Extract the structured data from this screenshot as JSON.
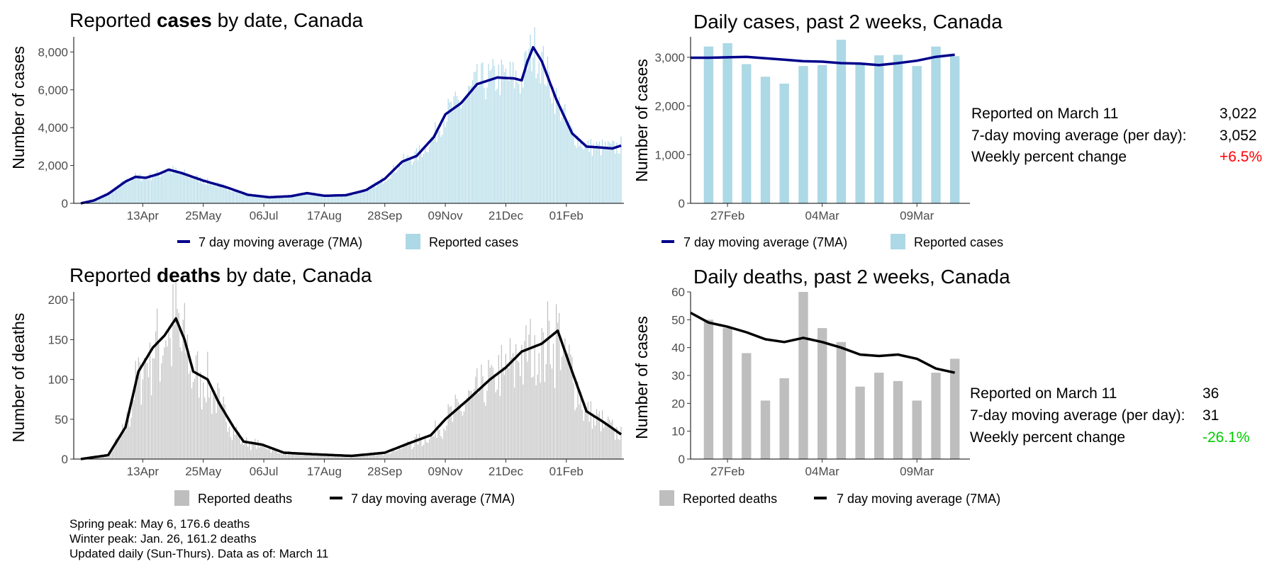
{
  "colors": {
    "cases_bar": "#add8e6",
    "cases_line": "#00008b",
    "deaths_bar": "#bebebe",
    "deaths_line": "#000000",
    "positive_change": "#ff0000",
    "negative_change": "#00cc00"
  },
  "panels": {
    "cases_full": {
      "title_pre": "Reported ",
      "title_bold": "cases",
      "title_post": " by date, Canada",
      "ylabel": "Number of cases",
      "legend_line": "7 day moving average (7MA)",
      "legend_bar": "Reported cases"
    },
    "cases_2wk": {
      "title": "Daily cases, past 2 weeks, Canada",
      "ylabel": "Number of cases",
      "legend_line": "7 day moving average (7MA)",
      "legend_bar": "Reported cases",
      "stats": [
        {
          "label": "Reported on March 11",
          "value": "3,022"
        },
        {
          "label": "7-day moving average (per day):",
          "value": "3,052"
        },
        {
          "label": "Weekly percent change",
          "value": "+6.5%"
        }
      ]
    },
    "deaths_full": {
      "title_pre": "Reported ",
      "title_bold": "deaths",
      "title_post": " by date, Canada",
      "ylabel": "Number of deaths",
      "legend_bar": "Reported deaths",
      "legend_line": "7 day moving average (7MA)"
    },
    "deaths_2wk": {
      "title": "Daily deaths, past 2 weeks, Canada",
      "ylabel": "Number of cases",
      "legend_bar": "Reported deaths",
      "legend_line": "7 day moving average (7MA)",
      "stats": [
        {
          "label": "Reported on March 11",
          "value": "36"
        },
        {
          "label": "7-day moving average (per day):",
          "value": "31"
        },
        {
          "label": "Weekly percent change",
          "value": "-26.1%"
        }
      ]
    }
  },
  "notes": [
    "Spring peak: May 6, 176.6 deaths",
    "Winter peak: Jan. 26, 161.2 deaths",
    "Updated daily (Sun-Thurs). Data as of: March 11"
  ],
  "chart_data": [
    {
      "id": "cases_full",
      "type": "bar",
      "x_range": [
        "2020-03-01",
        "2021-03-11"
      ],
      "ylim": [
        0,
        8800
      ],
      "yticks": [
        0,
        2000,
        4000,
        6000,
        8000
      ],
      "ytick_labels": [
        "0",
        "2,000",
        "4,000",
        "6,000",
        "8,000"
      ],
      "xticks": [
        "2020-04-13",
        "2020-05-25",
        "2020-07-06",
        "2020-08-17",
        "2020-09-28",
        "2020-11-09",
        "2020-12-21",
        "2021-02-01"
      ],
      "xtick_labels": [
        "13Apr",
        "25May",
        "06Jul",
        "17Aug",
        "28Sep",
        "09Nov",
        "21Dec",
        "01Feb"
      ],
      "grid": false,
      "legend": "bottom",
      "ma_anchors": [
        [
          "2020-03-01",
          0
        ],
        [
          "2020-03-10",
          150
        ],
        [
          "2020-03-20",
          500
        ],
        [
          "2020-04-01",
          1150
        ],
        [
          "2020-04-08",
          1400
        ],
        [
          "2020-04-15",
          1350
        ],
        [
          "2020-04-24",
          1550
        ],
        [
          "2020-05-01",
          1780
        ],
        [
          "2020-05-10",
          1600
        ],
        [
          "2020-05-25",
          1200
        ],
        [
          "2020-06-10",
          850
        ],
        [
          "2020-06-25",
          450
        ],
        [
          "2020-07-10",
          320
        ],
        [
          "2020-07-25",
          380
        ],
        [
          "2020-08-05",
          540
        ],
        [
          "2020-08-17",
          400
        ],
        [
          "2020-09-01",
          430
        ],
        [
          "2020-09-15",
          700
        ],
        [
          "2020-09-28",
          1300
        ],
        [
          "2020-10-10",
          2200
        ],
        [
          "2020-10-20",
          2500
        ],
        [
          "2020-11-01",
          3500
        ],
        [
          "2020-11-09",
          4700
        ],
        [
          "2020-11-20",
          5300
        ],
        [
          "2020-12-01",
          6300
        ],
        [
          "2020-12-15",
          6650
        ],
        [
          "2020-12-27",
          6600
        ],
        [
          "2021-01-01",
          6500
        ],
        [
          "2021-01-05",
          7500
        ],
        [
          "2021-01-09",
          8250
        ],
        [
          "2021-01-15",
          7500
        ],
        [
          "2021-01-25",
          5500
        ],
        [
          "2021-02-05",
          3700
        ],
        [
          "2021-02-15",
          3000
        ],
        [
          "2021-02-25",
          2950
        ],
        [
          "2021-03-05",
          2900
        ],
        [
          "2021-03-11",
          3052
        ]
      ]
    },
    {
      "id": "cases_2wk",
      "type": "bar",
      "categories": [
        "2021-02-26",
        "2021-02-27",
        "2021-02-28",
        "2021-03-01",
        "2021-03-02",
        "2021-03-03",
        "2021-03-04",
        "2021-03-05",
        "2021-03-06",
        "2021-03-07",
        "2021-03-08",
        "2021-03-09",
        "2021-03-10",
        "2021-03-11"
      ],
      "values": [
        3220,
        3290,
        2860,
        2600,
        2460,
        2820,
        2840,
        3360,
        2870,
        3040,
        3050,
        2820,
        3220,
        3022
      ],
      "ma": [
        2990,
        3000,
        3010,
        2980,
        2950,
        2920,
        2910,
        2880,
        2870,
        2840,
        2880,
        2930,
        3010,
        3052
      ],
      "ylim": [
        0,
        3420
      ],
      "yticks": [
        0,
        1000,
        2000,
        3000
      ],
      "ytick_labels": [
        "0",
        "1,000",
        "2,000",
        "3,000"
      ],
      "xtick_labels": [
        "27Feb",
        "04Mar",
        "09Mar"
      ],
      "grid": false,
      "legend": "bottom"
    },
    {
      "id": "deaths_full",
      "type": "bar",
      "x_range": [
        "2020-03-01",
        "2021-03-11"
      ],
      "ylim": [
        0,
        210
      ],
      "yticks": [
        0,
        50,
        100,
        150,
        200
      ],
      "ytick_labels": [
        "0",
        "50",
        "100",
        "150",
        "200"
      ],
      "xticks": [
        "2020-04-13",
        "2020-05-25",
        "2020-07-06",
        "2020-08-17",
        "2020-09-28",
        "2020-11-09",
        "2020-12-21",
        "2021-02-01"
      ],
      "xtick_labels": [
        "13Apr",
        "25May",
        "06Jul",
        "17Aug",
        "28Sep",
        "09Nov",
        "21Dec",
        "01Feb"
      ],
      "grid": false,
      "legend": "bottom",
      "ma_anchors": [
        [
          "2020-03-01",
          0
        ],
        [
          "2020-03-20",
          5
        ],
        [
          "2020-04-01",
          40
        ],
        [
          "2020-04-10",
          110
        ],
        [
          "2020-04-20",
          140
        ],
        [
          "2020-04-28",
          155
        ],
        [
          "2020-05-06",
          176.6
        ],
        [
          "2020-05-12",
          150
        ],
        [
          "2020-05-18",
          110
        ],
        [
          "2020-05-28",
          100
        ],
        [
          "2020-06-05",
          70
        ],
        [
          "2020-06-15",
          40
        ],
        [
          "2020-06-22",
          22
        ],
        [
          "2020-07-05",
          18
        ],
        [
          "2020-07-20",
          8
        ],
        [
          "2020-08-10",
          6
        ],
        [
          "2020-09-05",
          4
        ],
        [
          "2020-09-28",
          8
        ],
        [
          "2020-10-15",
          20
        ],
        [
          "2020-10-30",
          30
        ],
        [
          "2020-11-09",
          50
        ],
        [
          "2020-11-25",
          75
        ],
        [
          "2020-12-10",
          100
        ],
        [
          "2020-12-21",
          115
        ],
        [
          "2021-01-01",
          135
        ],
        [
          "2021-01-15",
          145
        ],
        [
          "2021-01-26",
          161.2
        ],
        [
          "2021-02-05",
          110
        ],
        [
          "2021-02-15",
          60
        ],
        [
          "2021-02-28",
          45
        ],
        [
          "2021-03-11",
          31
        ]
      ]
    },
    {
      "id": "deaths_2wk",
      "type": "bar",
      "categories": [
        "2021-02-26",
        "2021-02-27",
        "2021-02-28",
        "2021-03-01",
        "2021-03-02",
        "2021-03-03",
        "2021-03-04",
        "2021-03-05",
        "2021-03-06",
        "2021-03-07",
        "2021-03-08",
        "2021-03-09",
        "2021-03-10",
        "2021-03-11"
      ],
      "values": [
        50,
        47,
        38,
        21,
        29,
        60,
        47,
        42,
        26,
        31,
        28,
        21,
        31,
        36
      ],
      "ma": [
        49,
        47.5,
        45.5,
        43,
        42,
        43.5,
        42,
        40,
        37.5,
        37,
        37.5,
        36,
        32.5,
        31
      ],
      "ma_start": 52.5,
      "ylim": [
        0,
        60
      ],
      "yticks": [
        0,
        10,
        20,
        30,
        40,
        50,
        60
      ],
      "ytick_labels": [
        "0",
        "10",
        "20",
        "30",
        "40",
        "50",
        "60"
      ],
      "xtick_labels": [
        "27Feb",
        "04Mar",
        "09Mar"
      ],
      "grid": false,
      "legend": "bottom"
    }
  ]
}
